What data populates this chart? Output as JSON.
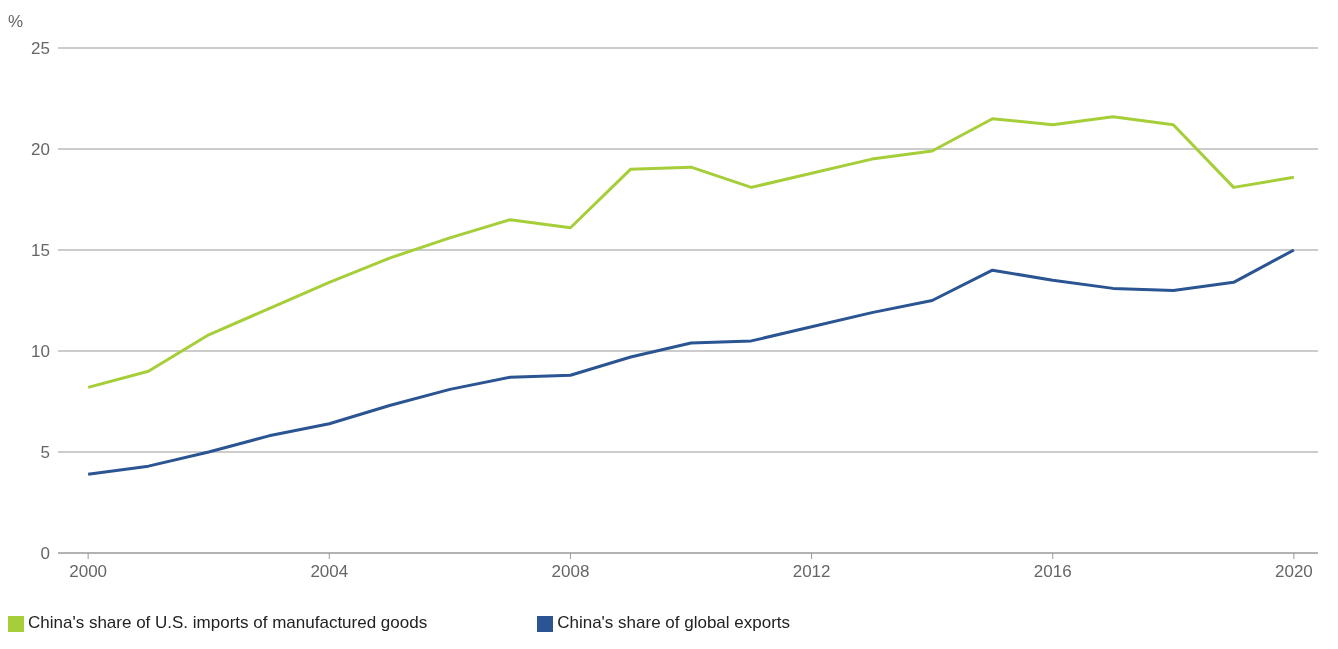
{
  "chart_data": {
    "type": "line",
    "ylabel": "%",
    "x": [
      2000,
      2001,
      2002,
      2003,
      2004,
      2005,
      2006,
      2007,
      2008,
      2009,
      2010,
      2011,
      2012,
      2013,
      2014,
      2015,
      2016,
      2017,
      2018,
      2019,
      2020
    ],
    "series": [
      {
        "name": "China's share of global exports",
        "color": "#2a5592",
        "values": [
          3.9,
          4.3,
          5.0,
          5.8,
          6.4,
          7.3,
          8.1,
          8.7,
          8.8,
          9.7,
          10.4,
          10.5,
          11.2,
          11.9,
          12.5,
          14.0,
          13.5,
          13.1,
          13.0,
          13.4,
          15.0
        ]
      },
      {
        "name": "China's share of U.S. imports of manufactured goods",
        "color": "#a6ce39",
        "values": [
          8.2,
          9.0,
          10.8,
          12.1,
          13.4,
          14.6,
          15.6,
          16.5,
          16.1,
          19.0,
          19.1,
          18.1,
          18.8,
          19.5,
          19.9,
          21.5,
          21.2,
          21.6,
          21.2,
          18.1,
          18.6
        ]
      }
    ],
    "xlim": [
      1999.5,
      2020.4
    ],
    "xticks": [
      2000,
      2004,
      2008,
      2012,
      2016,
      2020
    ],
    "ylim": [
      0,
      25
    ],
    "yticks": [
      0,
      5,
      10,
      15,
      20,
      25
    ],
    "grid": "y",
    "legend": "bottom left",
    "marker": "none",
    "line_style": "solid"
  }
}
